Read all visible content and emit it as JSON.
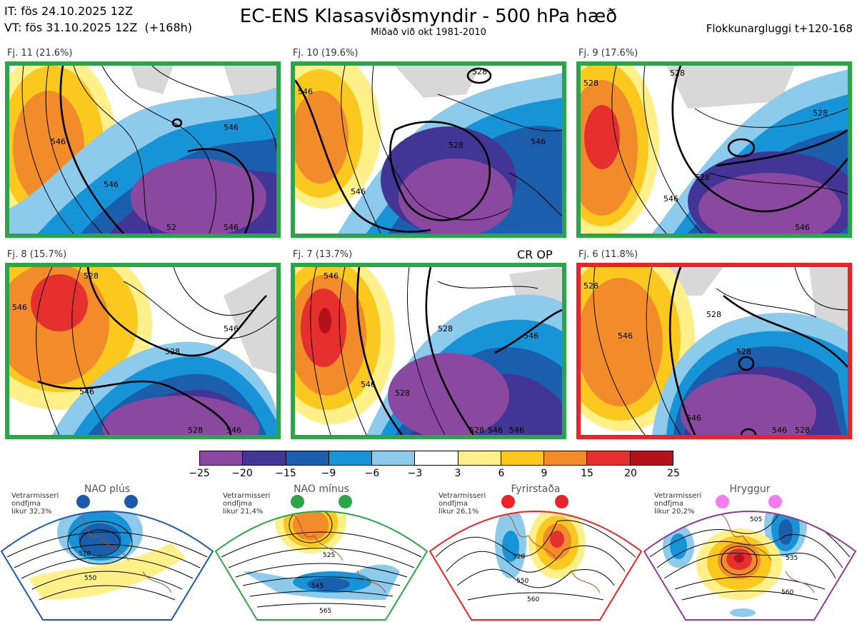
{
  "header": {
    "it": "IT: fös 24.10.2025 12Z",
    "vt": "VT: fös 31.10.2025 12Z  (+168h)",
    "title": "EC-ENS Klasasviðsmyndir - 500 hPa hæð",
    "subtitle": "Miðað við okt 1981-2010",
    "window": "Flokkunargluggi t+120-168"
  },
  "panels": [
    {
      "label": "Fj. 11 (21.6%)",
      "border": "green",
      "contours": [
        "546",
        "546",
        "546",
        "546",
        "52"
      ]
    },
    {
      "label": "Fj. 10 (19.6%)",
      "border": "green",
      "contours": [
        "528",
        "546",
        "528",
        "546",
        "546"
      ]
    },
    {
      "label": "Fj. 9 (17.6%)",
      "border": "green",
      "contours": [
        "528",
        "528",
        "528",
        "546",
        "546",
        "528"
      ]
    },
    {
      "label": "Fj. 8 (15.7%)",
      "border": "green",
      "contours": [
        "528",
        "546",
        "546",
        "528",
        "546",
        "546",
        "528"
      ]
    },
    {
      "label": "Fj. 7 (13.7%)",
      "border": "green",
      "contours": [
        "546",
        "546",
        "528",
        "528",
        "546",
        "546",
        "528",
        "546"
      ]
    },
    {
      "label": "Fj. 6 (11.8%)",
      "border": "red",
      "contours": [
        "528",
        "546",
        "528",
        "528",
        "546",
        "546",
        "528"
      ]
    }
  ],
  "cr_op": "CR OP",
  "colorbar": {
    "ticks": [
      "−25",
      "−20",
      "−15",
      "−9",
      "−6",
      "−3",
      "3",
      "6",
      "9",
      "15",
      "20",
      "25"
    ],
    "colors": [
      "#8a48a0",
      "#433596",
      "#1a5eac",
      "#1794d8",
      "#8ccbec",
      "#ffffff",
      "#fff08a",
      "#fac81e",
      "#f28c2a",
      "#e6302e",
      "#b3121a"
    ]
  },
  "regimes": [
    {
      "title": "NAO plús",
      "note": "Vetrarmisseri\nondfjma\nlikur 32,3%",
      "color": "#1a5aa8",
      "dot": "#1a5aa8",
      "labels": [
        "510",
        "550"
      ]
    },
    {
      "title": "NAO mínus",
      "note": "Vetrarmisseri\nondfjma\nlikur 21,4%",
      "color": "#2ca54a",
      "dot": "#2ca54a",
      "labels": [
        "525",
        "545",
        "565"
      ]
    },
    {
      "title": "Fyrirstaða",
      "note": "Vetrarmisseri\nondfjma\nlikur 26,1%",
      "color": "#e8242a",
      "dot": "#e8242a",
      "labels": [
        "520",
        "550",
        "560"
      ]
    },
    {
      "title": "Hryggur",
      "note": "Vetrarmisseri\nondfjma\nlikur 20,2%",
      "color": "#8e3a96",
      "dot": "#f07ef0",
      "labels": [
        "505",
        "535",
        "560"
      ]
    }
  ]
}
